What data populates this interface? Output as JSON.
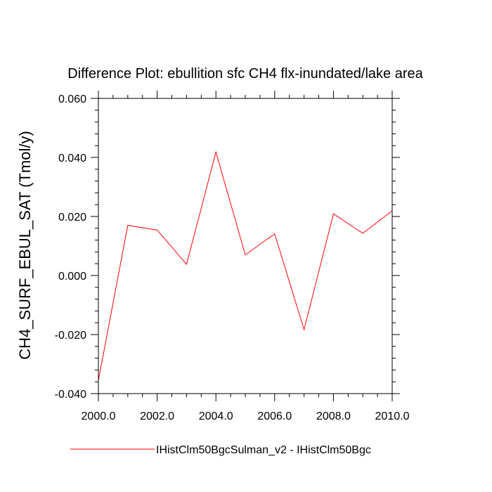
{
  "chart_data": {
    "type": "line",
    "title": "Difference Plot: ebullition sfc CH4 flx-inundated/lake area",
    "xlabel": "",
    "ylabel": "CH4_SURF_EBUL_SAT  (Tmol/y)",
    "xlim": [
      2000,
      2010
    ],
    "ylim": [
      -0.04,
      0.06
    ],
    "x_ticks": [
      "2000.0",
      "2002.0",
      "2004.0",
      "2006.0",
      "2008.0",
      "2010.0"
    ],
    "y_ticks": [
      "-0.040",
      "-0.020",
      "0.000",
      "0.020",
      "0.040",
      "0.060"
    ],
    "x": [
      2000,
      2001,
      2002,
      2003,
      2004,
      2005,
      2006,
      2007,
      2008,
      2009,
      2010
    ],
    "series": [
      {
        "name": "IHistClm50BgcSulman_v2 - IHistClm50Bgc",
        "color": "#ff0000",
        "values": [
          -0.0355,
          0.017,
          0.0154,
          0.0038,
          0.0418,
          0.007,
          0.0141,
          -0.0183,
          0.0209,
          0.0143,
          0.0219
        ]
      }
    ],
    "grid": false,
    "legend_position": "bottom"
  }
}
